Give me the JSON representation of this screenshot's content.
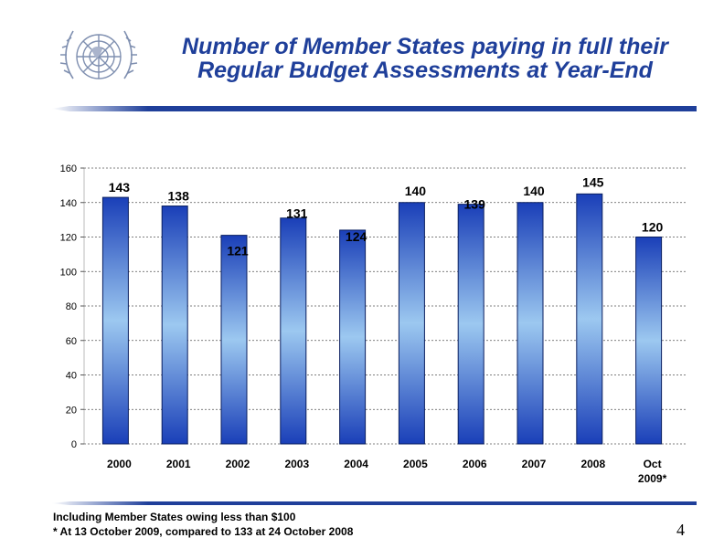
{
  "slide": {
    "title_line1": "Number of Member States paying in full their",
    "title_line2": "Regular Budget Assessments at Year-End",
    "footnote_line1": "Including Member States owing  less than $100",
    "footnote_line2": "* At 13 October 2009, compared to 133 at 24 October 2008",
    "page_number": "4",
    "logo_icon": "un-emblem-icon",
    "colors": {
      "title": "#1f3f9a",
      "bar_dark": "#1a3fb8",
      "bar_light": "#9cc8f0",
      "rule": "#1f3f9a"
    }
  },
  "chart_data": {
    "type": "bar",
    "categories": [
      "2000",
      "2001",
      "2002",
      "2003",
      "2004",
      "2005",
      "2006",
      "2007",
      "2008",
      "Oct 2009*"
    ],
    "category_lines": [
      [
        "2000"
      ],
      [
        "2001"
      ],
      [
        "2002"
      ],
      [
        "2003"
      ],
      [
        "2004"
      ],
      [
        "2005"
      ],
      [
        "2006"
      ],
      [
        "2007"
      ],
      [
        "2008"
      ],
      [
        "Oct",
        "2009*"
      ]
    ],
    "values": [
      143,
      138,
      121,
      131,
      124,
      140,
      139,
      140,
      145,
      120
    ],
    "ylim": [
      0,
      160
    ],
    "yticks": [
      0,
      20,
      40,
      60,
      80,
      100,
      120,
      140,
      160
    ],
    "grid": true,
    "title": "",
    "xlabel": "",
    "ylabel": ""
  }
}
